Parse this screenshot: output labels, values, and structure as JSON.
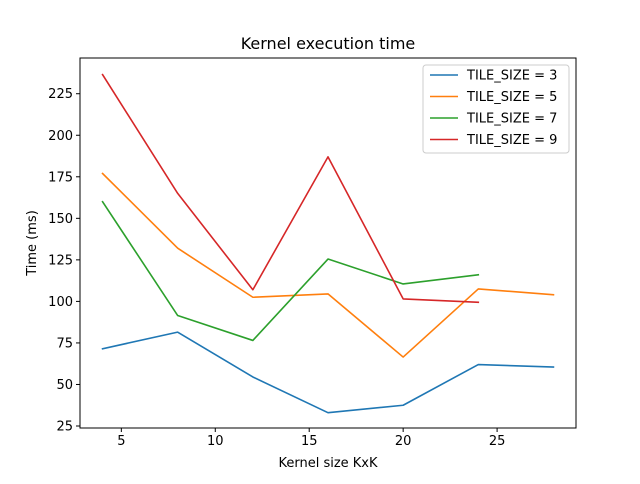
{
  "chart_data": {
    "type": "line",
    "title": "Kernel execution time",
    "xlabel": "Kernel size KxK",
    "ylabel": "Time (ms)",
    "xlim": [
      2.8,
      29.2
    ],
    "ylim": [
      23.8,
      246.5
    ],
    "xticks": [
      5,
      10,
      15,
      20,
      25
    ],
    "yticks": [
      25,
      50,
      75,
      100,
      125,
      150,
      175,
      200,
      225
    ],
    "grid": false,
    "legend_position": "top-right",
    "series": [
      {
        "name": "TILE_SIZE = 3",
        "color": "#1f77b4",
        "x": [
          4,
          8,
          12,
          16,
          20,
          24,
          28
        ],
        "y": [
          71.5,
          81.5,
          54.5,
          33.0,
          37.5,
          62.0,
          60.5
        ]
      },
      {
        "name": "TILE_SIZE = 5",
        "color": "#ff7f0e",
        "x": [
          4,
          8,
          12,
          16,
          20,
          24,
          28
        ],
        "y": [
          177.0,
          132.0,
          102.5,
          104.5,
          66.5,
          107.5,
          104.0
        ]
      },
      {
        "name": "TILE_SIZE = 7",
        "color": "#2ca02c",
        "x": [
          4,
          8,
          12,
          16,
          20,
          24
        ],
        "y": [
          160.0,
          91.5,
          76.5,
          125.5,
          110.5,
          116.0
        ]
      },
      {
        "name": "TILE_SIZE = 9",
        "color": "#d62728",
        "x": [
          4,
          8,
          12,
          16,
          20,
          24
        ],
        "y": [
          236.5,
          165.0,
          107.0,
          187.0,
          101.5,
          99.5
        ]
      }
    ]
  }
}
